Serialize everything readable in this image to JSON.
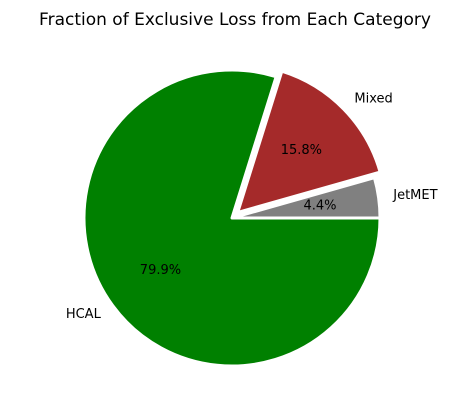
{
  "chart_data": {
    "type": "pie",
    "title": "Fraction of Exclusive Loss from Each Category",
    "slices": [
      {
        "label": "JetMET",
        "value": 4.4,
        "pct_label": "4.4%",
        "color": "#808080"
      },
      {
        "label": "Mixed",
        "value": 15.8,
        "pct_label": "15.8%",
        "color": "#a52a2a"
      },
      {
        "label": "HCAL",
        "value": 79.9,
        "pct_label": "79.9%",
        "color": "#008000"
      }
    ],
    "legend": "none",
    "start_angle_deg": 0,
    "direction": "counterclockwise",
    "exploded_slice": "Mixed"
  }
}
